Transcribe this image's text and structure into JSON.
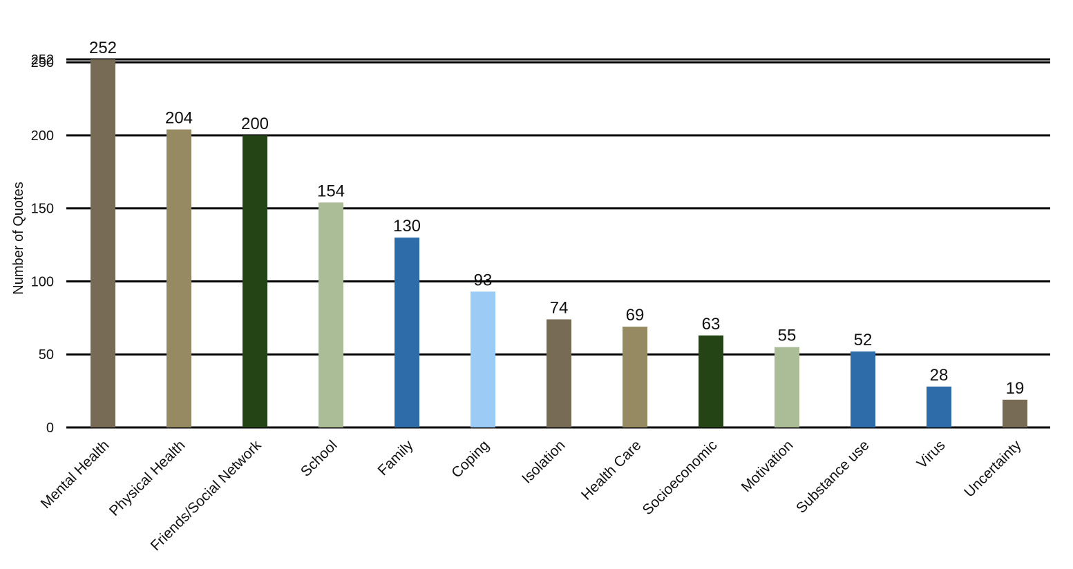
{
  "chart_data": {
    "type": "bar",
    "title": "",
    "xlabel": "",
    "ylabel": "Number of Quotes",
    "ylim": [
      0,
      252
    ],
    "yticks": [
      0,
      50,
      100,
      150,
      200,
      250,
      252
    ],
    "grid": true,
    "legend": "none",
    "categories": [
      "Mental Health",
      "Physical Health",
      "Friends/Social Network",
      "School",
      "Family",
      "Coping",
      "Isolation",
      "Health  Care",
      "Socioeconomic",
      "Motivation",
      "Substance use",
      "Virus",
      "Uncertainty"
    ],
    "values": [
      252,
      204,
      200,
      154,
      130,
      93,
      74,
      69,
      63,
      55,
      52,
      28,
      19
    ],
    "colors": [
      "#776b56",
      "#968a63",
      "#244416",
      "#abbd96",
      "#2e6ca9",
      "#9ccbf5",
      "#776b56",
      "#968a63",
      "#244416",
      "#abbd96",
      "#2e6ca9",
      "#2e6ca9",
      "#776b56"
    ]
  }
}
